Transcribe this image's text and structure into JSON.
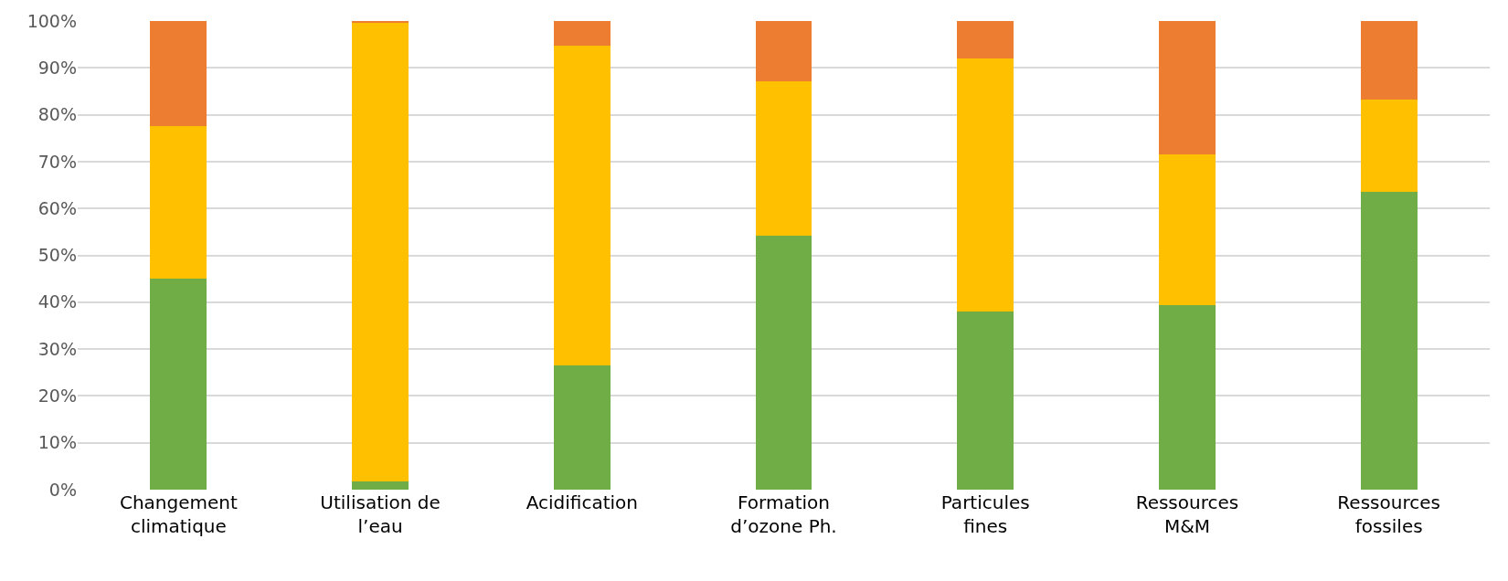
{
  "chart_data": {
    "type": "bar",
    "stacked": true,
    "grid": "y",
    "categories": [
      "Changement\nclimatique",
      "Utilisation de\nl’eau",
      "Acidification",
      "Formation\nd’ozone Ph.",
      "Particules\nfines",
      "Ressources\nM&M",
      "Ressources\nfossiles"
    ],
    "series": [
      {
        "color": "#70ad47",
        "values": [
          45,
          1.7,
          26.5,
          54.2,
          38,
          39.3,
          63.5
        ]
      },
      {
        "color": "#ffc000",
        "values": [
          32.5,
          98,
          68.3,
          33,
          54,
          32.2,
          19.7
        ]
      },
      {
        "color": "#ed7d31",
        "values": [
          22.5,
          0.3,
          5.2,
          12.8,
          8,
          28.5,
          16.8
        ]
      }
    ],
    "ylim": [
      0,
      100
    ],
    "yticks": [
      {
        "value": 0,
        "label": "0%"
      },
      {
        "value": 10,
        "label": "10%"
      },
      {
        "value": 20,
        "label": "20%"
      },
      {
        "value": 30,
        "label": "30%"
      },
      {
        "value": 40,
        "label": "40%"
      },
      {
        "value": 50,
        "label": "50%"
      },
      {
        "value": 60,
        "label": "60%"
      },
      {
        "value": 70,
        "label": "70%"
      },
      {
        "value": 80,
        "label": "80%"
      },
      {
        "value": 90,
        "label": "90%"
      },
      {
        "value": 100,
        "label": "100%"
      }
    ]
  }
}
